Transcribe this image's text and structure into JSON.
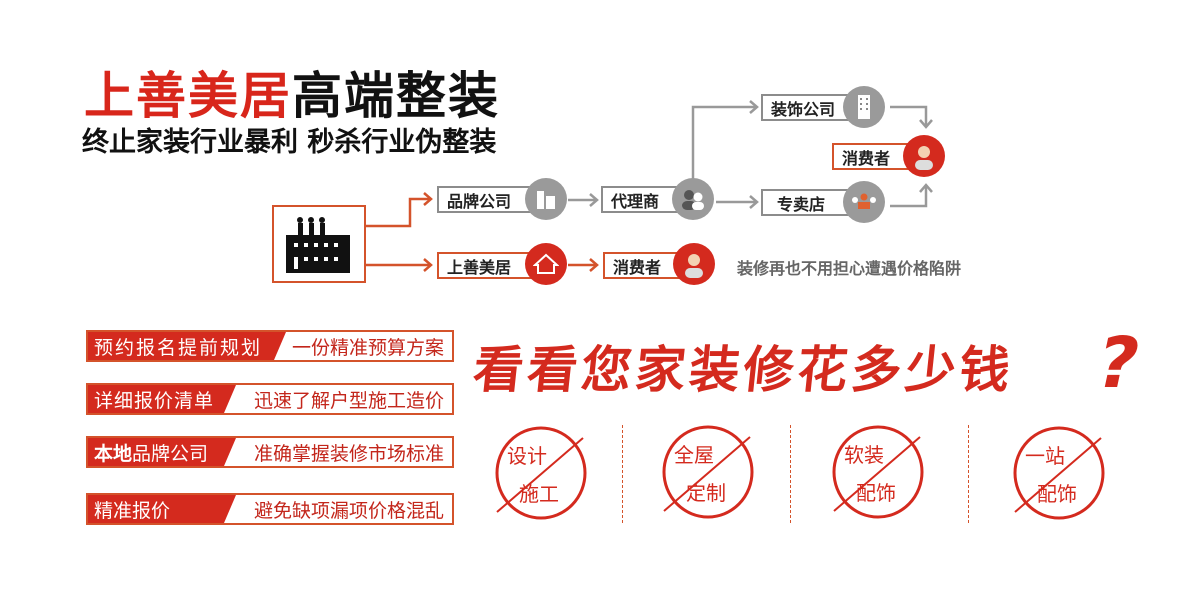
{
  "header": {
    "brand": "上善美居",
    "slogan": "高端整装",
    "subtitle": "终止家装行业暴利  秒杀行业伪整装"
  },
  "flow": {
    "factory_icon": "factory-icon",
    "traditional": {
      "brand_company": "品牌公司",
      "agent": "代理商",
      "decoration_company": "装饰公司",
      "store": "专卖店",
      "consumer": "消费者"
    },
    "direct": {
      "brand": "上善美居",
      "consumer": "消费者"
    },
    "note": "装修再也不用担心遭遇价格陷阱",
    "colors": {
      "accent": "#d42a1e",
      "border": "#d4532b",
      "gray": "#9a9a9a"
    }
  },
  "features": [
    {
      "label": "预约报名提前规划",
      "value": "一份精准预算方案"
    },
    {
      "label": "详细报价清单",
      "value": "迅速了解户型施工造价"
    },
    {
      "label_bold": "本地",
      "label": "品牌公司",
      "value": "准确掌握装修市场标准"
    },
    {
      "label": "精准报价",
      "value": "避免缺项漏项价格混乱"
    }
  ],
  "headline": "看看您家装修花多少钱",
  "headline_mark": "?",
  "stamps": [
    {
      "top": "设计",
      "bottom": "施工"
    },
    {
      "top": "全屋",
      "bottom": "定制"
    },
    {
      "top": "软装",
      "bottom": "配饰"
    },
    {
      "top": "一站",
      "bottom": "配饰"
    }
  ]
}
